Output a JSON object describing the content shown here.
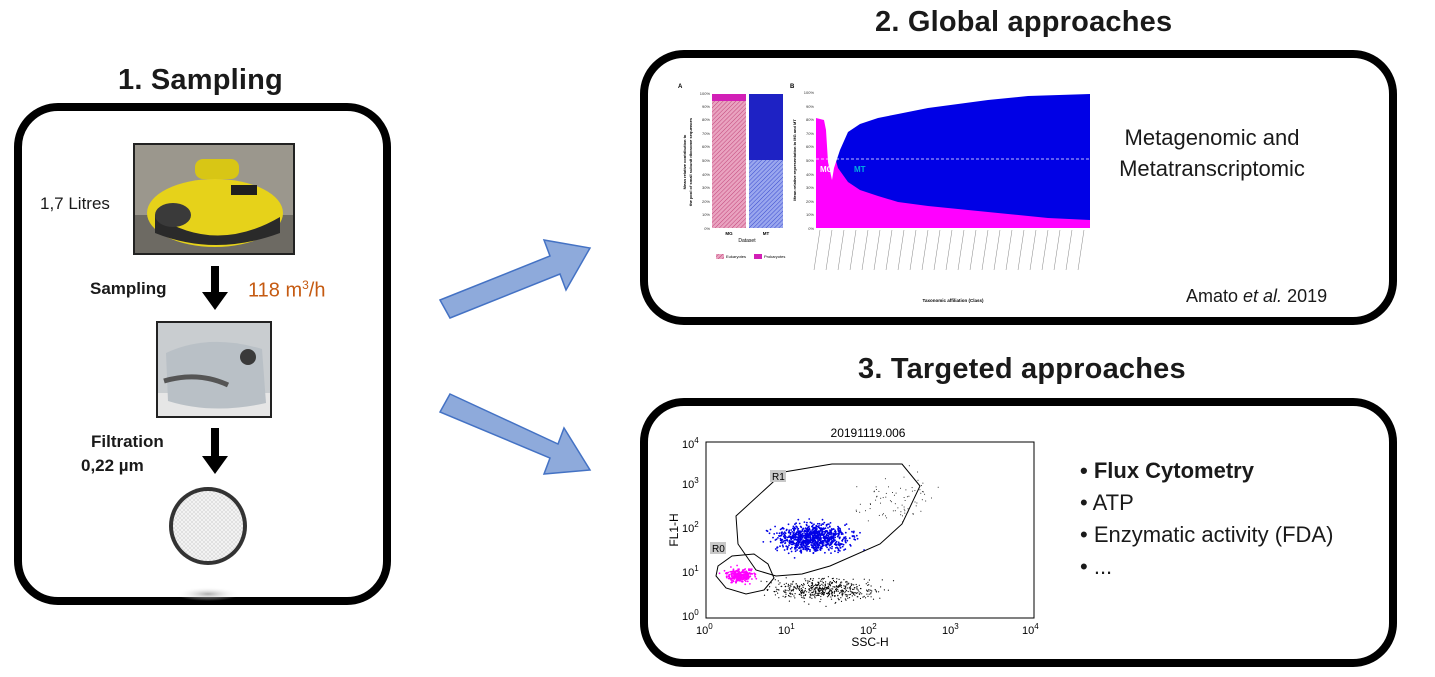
{
  "sampling": {
    "title": "1. Sampling",
    "volume_label": "1,7 Litres",
    "sampling_label": "Sampling",
    "flow_rate": "118 m",
    "flow_rate_exp": "3",
    "flow_rate_unit": "/h",
    "filtration_label": "Filtration",
    "filtration_size": "0,22 µm"
  },
  "global": {
    "title": "2. Global approaches",
    "description_line1": "Metagenomic and",
    "description_line2": "Metatranscriptomic",
    "citation_author": "Amato ",
    "citation_etal": "et al.",
    "citation_year": " 2019",
    "chart_a_label": "A",
    "chart_b_label": "B",
    "dataset_label": "Dataset",
    "mg_label": "MG",
    "mt_label": "MT",
    "legend_eukaryotes": "Eukaryotes",
    "legend_prokaryotes": "Prokaryotes",
    "taxonomic_label": "Taxonomic affiliation (Class)"
  },
  "targeted": {
    "title": "3. Targeted approaches",
    "plot_title": "20191119.006",
    "xlabel": "SSC-H",
    "ylabel": "FL1-H",
    "gate_r0": "R0",
    "gate_r1": "R1",
    "bullets": [
      "Flux Cytometry",
      "ATP",
      "Enzymatic activity (FDA)",
      "..."
    ]
  },
  "colors": {
    "magenta": "#ff00ff",
    "blue": "#0000e6",
    "arrow_fill": "#8eaadb",
    "arrow_stroke": "#4472c4",
    "orange": "#c55a11"
  }
}
